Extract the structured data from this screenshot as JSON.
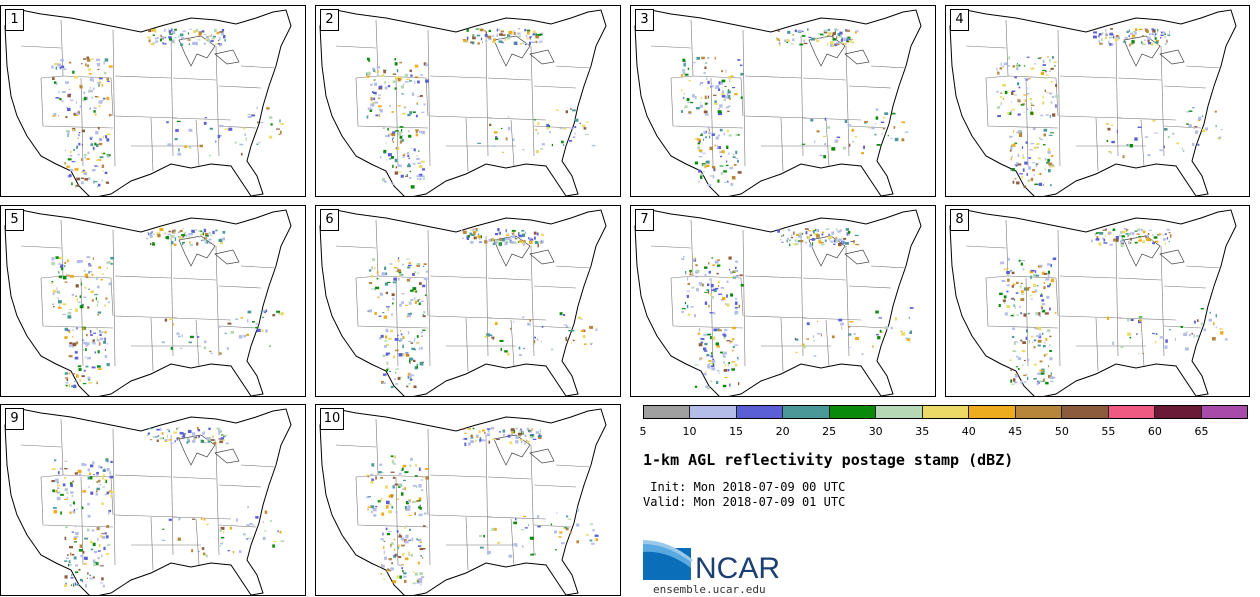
{
  "panels": [
    {
      "label": "1"
    },
    {
      "label": "2"
    },
    {
      "label": "3"
    },
    {
      "label": "4"
    },
    {
      "label": "5"
    },
    {
      "label": "6"
    },
    {
      "label": "7"
    },
    {
      "label": "8"
    },
    {
      "label": "9"
    },
    {
      "label": "10"
    }
  ],
  "colorbar": {
    "colors": [
      "#a0a0a0",
      "#b4bde8",
      "#5a5fd6",
      "#4a9898",
      "#0a8a0a",
      "#b6d8b4",
      "#ecda66",
      "#ecac1e",
      "#b8863a",
      "#8c5a3c",
      "#ee5a82",
      "#6a1a36",
      "#a84aaa"
    ],
    "ticks": [
      "5",
      "10",
      "15",
      "20",
      "25",
      "30",
      "35",
      "40",
      "45",
      "50",
      "55",
      "60",
      "65"
    ]
  },
  "title": "1-km AGL reflectivity postage stamp (dBZ)",
  "init": " Init: Mon 2018-07-09 00 UTC",
  "valid": "Valid: Mon 2018-07-09 01 UTC",
  "logo": {
    "text": "NCAR",
    "url": "ensemble.ucar.edu"
  }
}
